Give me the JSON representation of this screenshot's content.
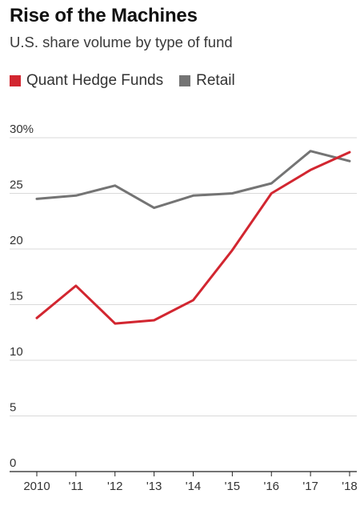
{
  "header": {
    "title": "Rise of the Machines",
    "subtitle": "U.S. share volume by type of fund"
  },
  "chart_data": {
    "type": "line",
    "title": "Rise of the Machines",
    "subtitle": "U.S. share volume by type of fund",
    "xlabel": "",
    "ylabel": "",
    "x": [
      "2010",
      "'11",
      "'12",
      "'13",
      "'14",
      "'15",
      "'16",
      "'17",
      "'18"
    ],
    "ylim": [
      0,
      30
    ],
    "yticks": [
      0,
      5,
      10,
      15,
      20,
      25,
      30
    ],
    "ytick_labels": [
      "0",
      "5",
      "10",
      "15",
      "20",
      "25",
      "30%"
    ],
    "grid": true,
    "legend_position": "top-left",
    "series": [
      {
        "name": "Quant Hedge Funds",
        "color": "#d22630",
        "values": [
          13.8,
          16.7,
          13.3,
          13.6,
          15.4,
          19.9,
          25.0,
          27.1,
          28.7
        ]
      },
      {
        "name": "Retail",
        "color": "#747474",
        "values": [
          24.5,
          24.8,
          25.7,
          23.7,
          24.8,
          25.0,
          25.9,
          28.8,
          27.9
        ]
      }
    ]
  }
}
